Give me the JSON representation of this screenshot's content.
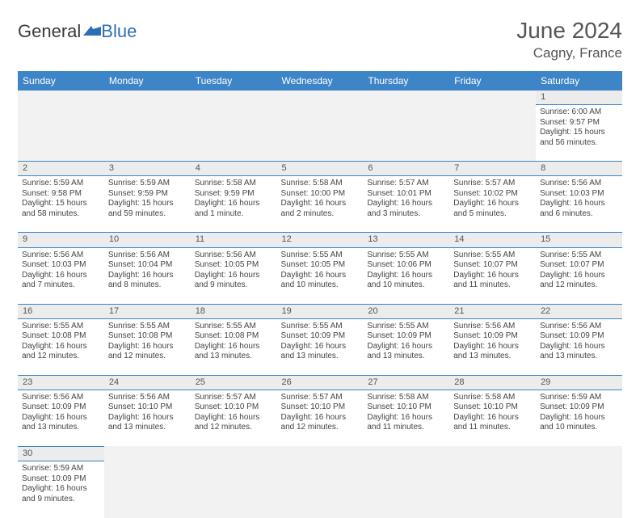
{
  "logo": {
    "general": "General",
    "blue": "Blue"
  },
  "title": "June 2024",
  "location": "Cagny, France",
  "colors": {
    "header_bg": "#3d85c6",
    "header_text": "#ffffff",
    "daynum_bg": "#ececec",
    "blank_bg": "#f2f2f2",
    "border": "#3d85c6",
    "text": "#444444",
    "title_text": "#555555"
  },
  "weekdays": [
    "Sunday",
    "Monday",
    "Tuesday",
    "Wednesday",
    "Thursday",
    "Friday",
    "Saturday"
  ],
  "weeks": [
    [
      null,
      null,
      null,
      null,
      null,
      null,
      {
        "n": "1",
        "sunrise": "6:00 AM",
        "sunset": "9:57 PM",
        "daylight": "15 hours and 56 minutes."
      }
    ],
    [
      {
        "n": "2",
        "sunrise": "5:59 AM",
        "sunset": "9:58 PM",
        "daylight": "15 hours and 58 minutes."
      },
      {
        "n": "3",
        "sunrise": "5:59 AM",
        "sunset": "9:59 PM",
        "daylight": "15 hours and 59 minutes."
      },
      {
        "n": "4",
        "sunrise": "5:58 AM",
        "sunset": "9:59 PM",
        "daylight": "16 hours and 1 minute."
      },
      {
        "n": "5",
        "sunrise": "5:58 AM",
        "sunset": "10:00 PM",
        "daylight": "16 hours and 2 minutes."
      },
      {
        "n": "6",
        "sunrise": "5:57 AM",
        "sunset": "10:01 PM",
        "daylight": "16 hours and 3 minutes."
      },
      {
        "n": "7",
        "sunrise": "5:57 AM",
        "sunset": "10:02 PM",
        "daylight": "16 hours and 5 minutes."
      },
      {
        "n": "8",
        "sunrise": "5:56 AM",
        "sunset": "10:03 PM",
        "daylight": "16 hours and 6 minutes."
      }
    ],
    [
      {
        "n": "9",
        "sunrise": "5:56 AM",
        "sunset": "10:03 PM",
        "daylight": "16 hours and 7 minutes."
      },
      {
        "n": "10",
        "sunrise": "5:56 AM",
        "sunset": "10:04 PM",
        "daylight": "16 hours and 8 minutes."
      },
      {
        "n": "11",
        "sunrise": "5:56 AM",
        "sunset": "10:05 PM",
        "daylight": "16 hours and 9 minutes."
      },
      {
        "n": "12",
        "sunrise": "5:55 AM",
        "sunset": "10:05 PM",
        "daylight": "16 hours and 10 minutes."
      },
      {
        "n": "13",
        "sunrise": "5:55 AM",
        "sunset": "10:06 PM",
        "daylight": "16 hours and 10 minutes."
      },
      {
        "n": "14",
        "sunrise": "5:55 AM",
        "sunset": "10:07 PM",
        "daylight": "16 hours and 11 minutes."
      },
      {
        "n": "15",
        "sunrise": "5:55 AM",
        "sunset": "10:07 PM",
        "daylight": "16 hours and 12 minutes."
      }
    ],
    [
      {
        "n": "16",
        "sunrise": "5:55 AM",
        "sunset": "10:08 PM",
        "daylight": "16 hours and 12 minutes."
      },
      {
        "n": "17",
        "sunrise": "5:55 AM",
        "sunset": "10:08 PM",
        "daylight": "16 hours and 12 minutes."
      },
      {
        "n": "18",
        "sunrise": "5:55 AM",
        "sunset": "10:08 PM",
        "daylight": "16 hours and 13 minutes."
      },
      {
        "n": "19",
        "sunrise": "5:55 AM",
        "sunset": "10:09 PM",
        "daylight": "16 hours and 13 minutes."
      },
      {
        "n": "20",
        "sunrise": "5:55 AM",
        "sunset": "10:09 PM",
        "daylight": "16 hours and 13 minutes."
      },
      {
        "n": "21",
        "sunrise": "5:56 AM",
        "sunset": "10:09 PM",
        "daylight": "16 hours and 13 minutes."
      },
      {
        "n": "22",
        "sunrise": "5:56 AM",
        "sunset": "10:09 PM",
        "daylight": "16 hours and 13 minutes."
      }
    ],
    [
      {
        "n": "23",
        "sunrise": "5:56 AM",
        "sunset": "10:09 PM",
        "daylight": "16 hours and 13 minutes."
      },
      {
        "n": "24",
        "sunrise": "5:56 AM",
        "sunset": "10:10 PM",
        "daylight": "16 hours and 13 minutes."
      },
      {
        "n": "25",
        "sunrise": "5:57 AM",
        "sunset": "10:10 PM",
        "daylight": "16 hours and 12 minutes."
      },
      {
        "n": "26",
        "sunrise": "5:57 AM",
        "sunset": "10:10 PM",
        "daylight": "16 hours and 12 minutes."
      },
      {
        "n": "27",
        "sunrise": "5:58 AM",
        "sunset": "10:10 PM",
        "daylight": "16 hours and 11 minutes."
      },
      {
        "n": "28",
        "sunrise": "5:58 AM",
        "sunset": "10:10 PM",
        "daylight": "16 hours and 11 minutes."
      },
      {
        "n": "29",
        "sunrise": "5:59 AM",
        "sunset": "10:09 PM",
        "daylight": "16 hours and 10 minutes."
      }
    ],
    [
      {
        "n": "30",
        "sunrise": "5:59 AM",
        "sunset": "10:09 PM",
        "daylight": "16 hours and 9 minutes."
      },
      null,
      null,
      null,
      null,
      null,
      null
    ]
  ],
  "labels": {
    "sunrise_prefix": "Sunrise: ",
    "sunset_prefix": "Sunset: ",
    "daylight_prefix": "Daylight: "
  }
}
